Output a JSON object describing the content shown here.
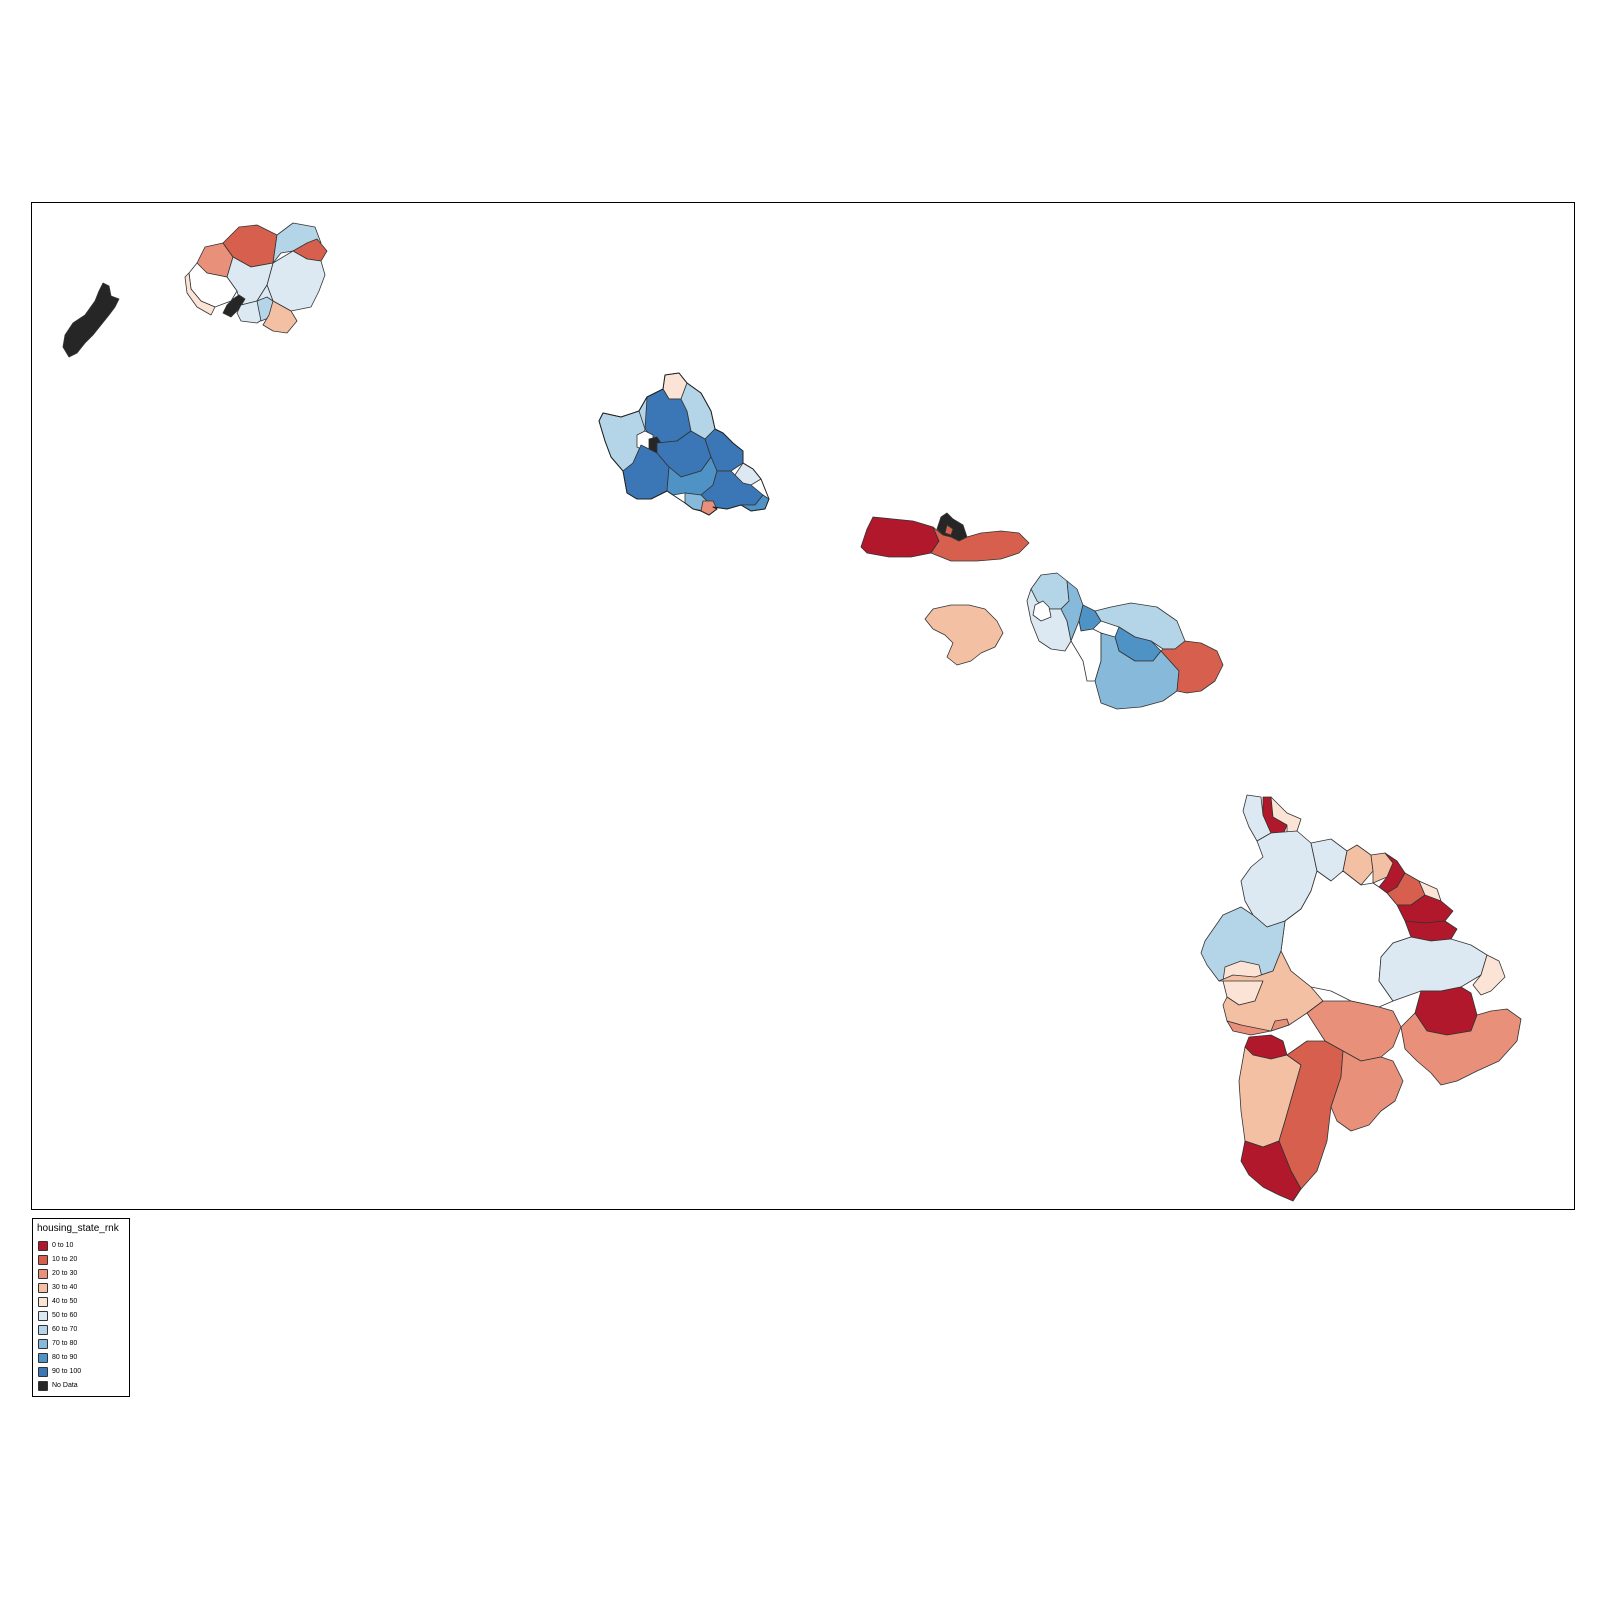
{
  "legend": {
    "title": "housing_state_rnk",
    "items": [
      {
        "label": "0 to 10",
        "color": "#b2182b"
      },
      {
        "label": "10 to 20",
        "color": "#d6604d"
      },
      {
        "label": "20 to 30",
        "color": "#e8907a"
      },
      {
        "label": "30 to 40",
        "color": "#f4c0a3"
      },
      {
        "label": "40 to 50",
        "color": "#fbe3d6"
      },
      {
        "label": "50 to 60",
        "color": "#dce9f2"
      },
      {
        "label": "60 to 70",
        "color": "#b4d5e7"
      },
      {
        "label": "70 to 80",
        "color": "#86b9da"
      },
      {
        "label": "80 to 90",
        "color": "#4f92c6"
      },
      {
        "label": "90 to 100",
        "color": "#3b77b6"
      },
      {
        "label": "No Data",
        "color": "#262626"
      }
    ]
  },
  "map": {
    "islands": [
      "Niihau",
      "Kauai",
      "Oahu",
      "Molokai",
      "Lanai",
      "Maui",
      "Hawaii"
    ]
  }
}
